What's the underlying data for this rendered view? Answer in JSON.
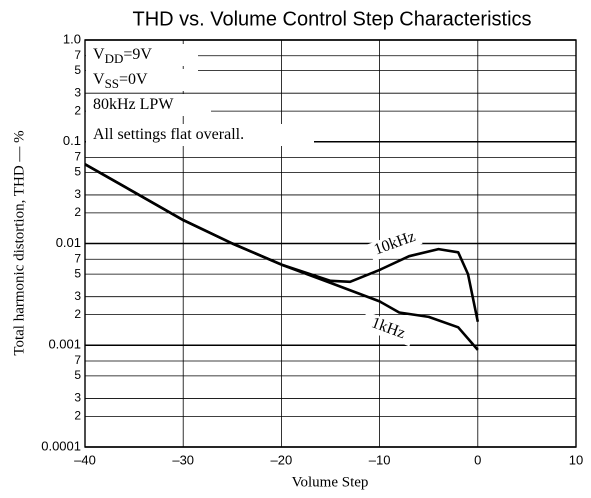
{
  "chart_data": {
    "type": "line",
    "title": "THD vs. Volume Control Step Characteristics",
    "xlabel": "Volume Step",
    "ylabel": "Total harmonic distortion, THD — %",
    "ylog": true,
    "grid": true,
    "xlim": [
      -40,
      10
    ],
    "xticks": [
      {
        "value": -40,
        "label": "–40"
      },
      {
        "value": -30,
        "label": "–30"
      },
      {
        "value": -20,
        "label": "–20"
      },
      {
        "value": -10,
        "label": "–10"
      },
      0,
      10
    ],
    "ylim": [
      0.0001,
      1
    ],
    "yticks": [
      {
        "value": 1,
        "label": "1.0"
      },
      {
        "value": 0.7,
        "label": "7"
      },
      {
        "value": 0.5,
        "label": "5"
      },
      {
        "value": 0.3,
        "label": "3"
      },
      {
        "value": 0.2,
        "label": "2"
      },
      0.1,
      {
        "value": 0.07,
        "label": "7"
      },
      {
        "value": 0.05,
        "label": "5"
      },
      {
        "value": 0.03,
        "label": "3"
      },
      {
        "value": 0.02,
        "label": "2"
      },
      0.01,
      {
        "value": 0.007,
        "label": "7"
      },
      {
        "value": 0.005,
        "label": "5"
      },
      {
        "value": 0.003,
        "label": "3"
      },
      {
        "value": 0.002,
        "label": "2"
      },
      0.001,
      {
        "value": 0.0007,
        "label": "7"
      },
      {
        "value": 0.0005,
        "label": "5"
      },
      {
        "value": 0.0003,
        "label": "3"
      },
      {
        "value": 0.0002,
        "label": "2"
      },
      0.0001
    ],
    "annotations": [
      {
        "text": "V",
        "sub": "DD",
        "rest": "=9V"
      },
      {
        "text": "V",
        "sub": "SS",
        "rest": "=0V"
      },
      {
        "text": "80kHz LPW"
      },
      {
        "text": "All settings flat overall."
      }
    ],
    "series": [
      {
        "name": "10kHz",
        "color": "#000000",
        "x": [
          -40,
          -35,
          -30,
          -25,
          -20,
          -15,
          -13,
          -10,
          -7,
          -4,
          -2,
          -1,
          0
        ],
        "values": [
          0.06,
          0.032,
          0.017,
          0.01,
          0.0062,
          0.0043,
          0.0042,
          0.0055,
          0.0075,
          0.0088,
          0.0082,
          0.005,
          0.0017
        ]
      },
      {
        "name": "1kHz",
        "color": "#000000",
        "x": [
          -40,
          -35,
          -30,
          -25,
          -20,
          -15,
          -10,
          -8,
          -5,
          -2,
          0
        ],
        "values": [
          0.06,
          0.032,
          0.017,
          0.01,
          0.0062,
          0.0041,
          0.0027,
          0.0021,
          0.0019,
          0.0015,
          0.0009
        ]
      }
    ]
  }
}
